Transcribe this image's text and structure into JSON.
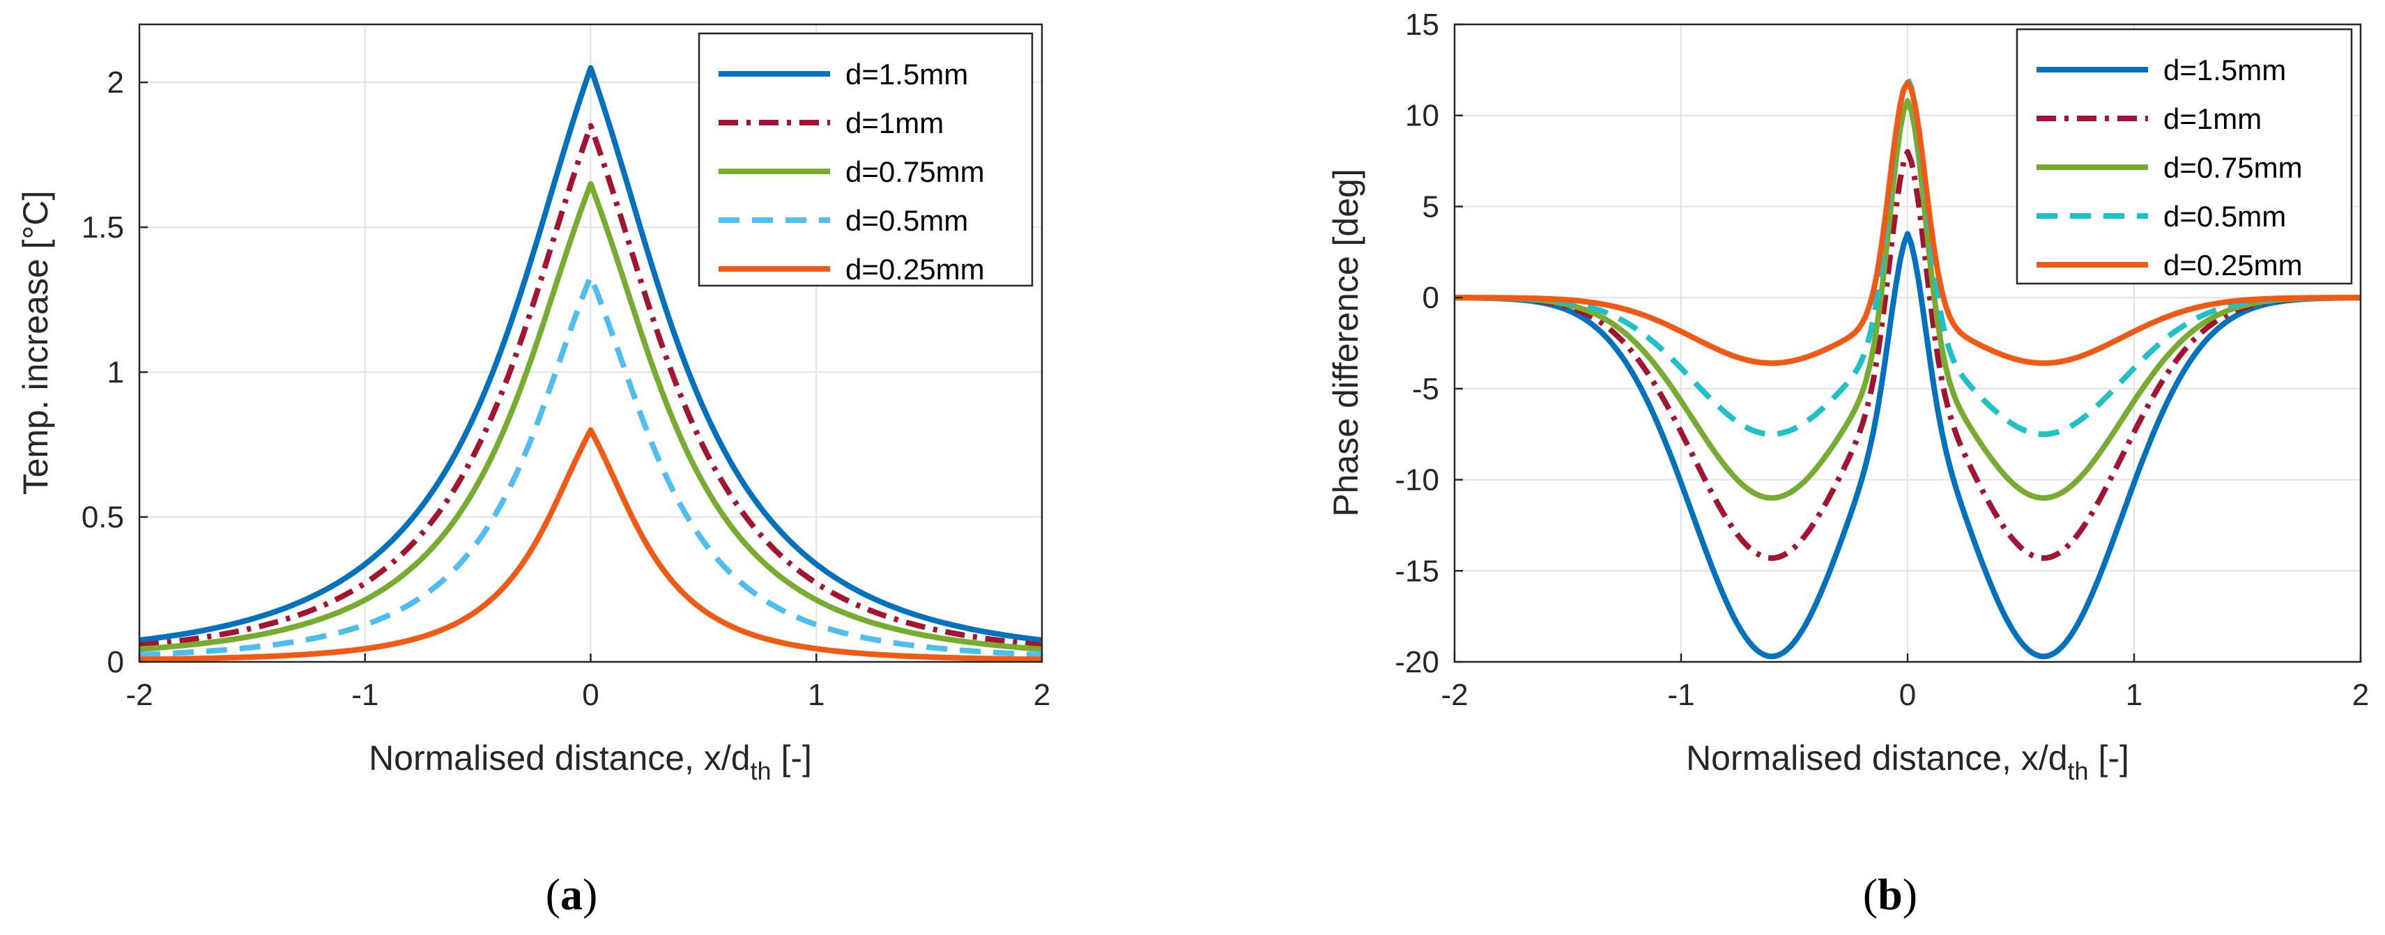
{
  "chart_data": [
    {
      "type": "line",
      "panel_label": "(a)",
      "panel_letter": "a",
      "xlabel": "Normalised distance, x/d",
      "xlabel_sub": "th",
      "xlabel_suffix": " [-]",
      "ylabel": "Temp. increase [°C]",
      "xlim": [
        -2,
        2
      ],
      "ylim": [
        0,
        2.2
      ],
      "xticks": [
        -2,
        -1,
        0,
        1,
        2
      ],
      "yticks": [
        0,
        0.5,
        1,
        1.5,
        2
      ],
      "xtick_labels": [
        "-2",
        "-1",
        "0",
        "1",
        "2"
      ],
      "ytick_labels": [
        "0",
        "0.5",
        "1",
        "1.5",
        "2"
      ],
      "grid": true,
      "legend_position": "top-right",
      "series": [
        {
          "name": "d=1.5mm",
          "color": "#0072BD",
          "dash": "solid",
          "peak": 2.05,
          "width": 0.5
        },
        {
          "name": "d=1mm",
          "color": "#A2142F",
          "dash": "dashdot",
          "peak": 1.85,
          "width": 0.47
        },
        {
          "name": "d=0.75mm",
          "color": "#77AC30",
          "dash": "solid",
          "peak": 1.65,
          "width": 0.44
        },
        {
          "name": "d=0.5mm",
          "color": "#4DBEEE",
          "dash": "dashed",
          "peak": 1.33,
          "width": 0.38
        },
        {
          "name": "d=0.25mm",
          "color": "#F05A14",
          "dash": "solid",
          "peak": 0.8,
          "width": 0.3
        }
      ]
    },
    {
      "type": "line",
      "panel_label": "(b)",
      "panel_letter": "b",
      "xlabel": "Normalised distance, x/d",
      "xlabel_sub": "th",
      "xlabel_suffix": " [-]",
      "ylabel": "Phase difference [deg]",
      "xlim": [
        -2,
        2
      ],
      "ylim": [
        -20,
        15
      ],
      "xticks": [
        -2,
        -1,
        0,
        1,
        2
      ],
      "yticks": [
        -20,
        -15,
        -10,
        -5,
        0,
        5,
        10,
        15
      ],
      "xtick_labels": [
        "-2",
        "-1",
        "0",
        "1",
        "2"
      ],
      "ytick_labels": [
        "-20",
        "-15",
        "-10",
        "-5",
        "0",
        "5",
        "10",
        "15"
      ],
      "grid": true,
      "legend_position": "top-right",
      "series": [
        {
          "name": "d=1.5mm",
          "color": "#0072BD",
          "dash": "solid",
          "peak": 3.5,
          "trough": -19.7,
          "trough_x": 0.6
        },
        {
          "name": "d=1mm",
          "color": "#A2142F",
          "dash": "dashdot",
          "peak": 8.0,
          "trough": -14.3,
          "trough_x": 0.6
        },
        {
          "name": "d=0.75mm",
          "color": "#77AC30",
          "dash": "solid",
          "peak": 10.8,
          "trough": -11.0,
          "trough_x": 0.6
        },
        {
          "name": "d=0.5mm",
          "color": "#1FC0C8",
          "dash": "dashed",
          "peak": 12.0,
          "trough": -7.5,
          "trough_x": 0.6
        },
        {
          "name": "d=0.25mm",
          "color": "#F05A14",
          "dash": "solid",
          "peak": 11.8,
          "trough": -3.6,
          "trough_x": 0.6
        }
      ]
    }
  ]
}
